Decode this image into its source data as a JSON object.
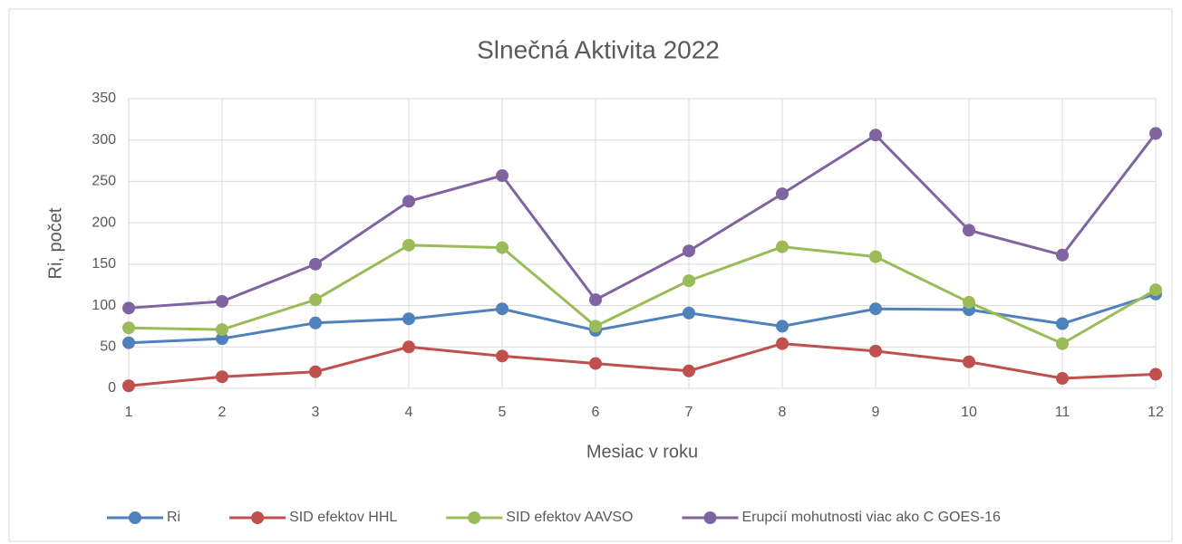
{
  "chart_data": {
    "type": "line",
    "title": "Slnečná Aktivita 2022",
    "xlabel": "Mesiac v roku",
    "ylabel": "Ri, počet",
    "x": [
      1,
      2,
      3,
      4,
      5,
      6,
      7,
      8,
      9,
      10,
      11,
      12
    ],
    "xlim": [
      1,
      12
    ],
    "xticks": [
      1,
      2,
      3,
      4,
      5,
      6,
      7,
      8,
      9,
      10,
      11,
      12
    ],
    "ylim": [
      0,
      350
    ],
    "yticks": [
      0,
      50,
      100,
      150,
      200,
      250,
      300,
      350
    ],
    "grid": true,
    "legend": "bottom",
    "series": [
      {
        "name": "Ri",
        "color": "#4f81bd",
        "values": [
          55,
          60,
          79,
          84,
          96,
          70,
          91,
          75,
          96,
          95,
          78,
          114
        ]
      },
      {
        "name": "SID efektov HHL",
        "color": "#c0504d",
        "values": [
          3,
          14,
          20,
          50,
          39,
          30,
          21,
          54,
          45,
          32,
          12,
          17
        ]
      },
      {
        "name": "SID efektov AAVSO",
        "color": "#9bbb59",
        "values": [
          73,
          71,
          107,
          173,
          170,
          75,
          130,
          171,
          159,
          104,
          54,
          119
        ]
      },
      {
        "name": "Erupcií mohutnosti viac ako C GOES-16",
        "color": "#8064a2",
        "values": [
          97,
          105,
          150,
          226,
          257,
          107,
          166,
          235,
          306,
          191,
          161,
          308
        ]
      }
    ]
  }
}
